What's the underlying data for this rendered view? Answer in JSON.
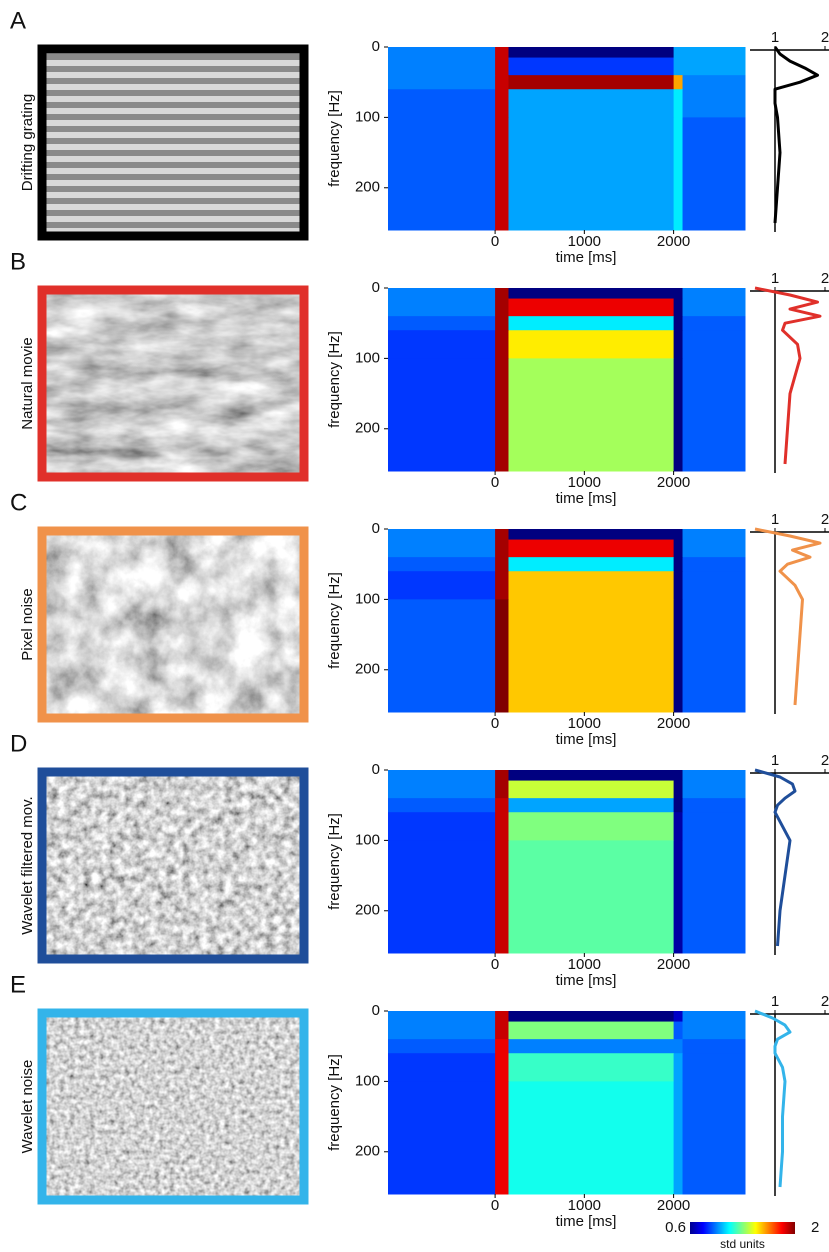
{
  "chart_data": [
    {
      "type": "heatmap",
      "panel": "A",
      "stimulus": "Drifting grating",
      "frame_color": "#000000",
      "xlabel": "time [ms]",
      "ylabel": "frequency [Hz]",
      "xlim": [
        -1200,
        2800
      ],
      "ylim": [
        260,
        0
      ],
      "xticks": [
        0,
        1000,
        2000
      ],
      "yticks": [
        0,
        100,
        200
      ],
      "x_edges": [
        -1200,
        0,
        150,
        2000,
        2100,
        2800
      ],
      "y_edges": [
        0,
        15,
        40,
        60,
        100,
        260
      ],
      "values": [
        [
          0.95,
          1.9,
          0.6,
          1.0,
          1.0
        ],
        [
          0.95,
          1.9,
          0.85,
          1.0,
          1.0
        ],
        [
          0.95,
          1.9,
          1.95,
          1.6,
          0.95
        ],
        [
          0.9,
          1.9,
          1.0,
          1.1,
          0.95
        ],
        [
          0.9,
          1.9,
          1.0,
          1.1,
          0.9
        ]
      ],
      "profile": {
        "color": "#000000",
        "xlim": [
          0.5,
          2
        ],
        "xticks": [
          1,
          2
        ],
        "freq": [
          0,
          10,
          20,
          30,
          40,
          50,
          60,
          80,
          100,
          150,
          200,
          250
        ],
        "values": [
          1.0,
          1.1,
          1.3,
          1.6,
          1.85,
          1.5,
          1.0,
          1.0,
          1.05,
          1.1,
          1.05,
          1.0
        ]
      }
    },
    {
      "type": "heatmap",
      "panel": "B",
      "stimulus": "Natural movie",
      "frame_color": "#e0302a",
      "xlabel": "time [ms]",
      "ylabel": "frequency [Hz]",
      "xlim": [
        -1200,
        2800
      ],
      "ylim": [
        260,
        0
      ],
      "xticks": [
        0,
        1000,
        2000
      ],
      "yticks": [
        0,
        100,
        200
      ],
      "x_edges": [
        -1200,
        0,
        150,
        2000,
        2100,
        2800
      ],
      "y_edges": [
        0,
        15,
        40,
        60,
        100,
        260
      ],
      "values": [
        [
          0.95,
          1.95,
          0.6,
          0.6,
          0.95
        ],
        [
          0.95,
          1.95,
          1.85,
          0.6,
          0.95
        ],
        [
          0.9,
          1.95,
          1.1,
          0.6,
          0.9
        ],
        [
          0.85,
          1.95,
          1.5,
          0.6,
          0.9
        ],
        [
          0.85,
          1.95,
          1.35,
          0.6,
          0.9
        ]
      ],
      "profile": {
        "color": "#e0302a",
        "xlim": [
          0.5,
          2
        ],
        "xticks": [
          1,
          2
        ],
        "freq": [
          0,
          10,
          20,
          30,
          40,
          50,
          60,
          80,
          100,
          150,
          200,
          250
        ],
        "values": [
          0.6,
          1.3,
          1.85,
          1.3,
          1.9,
          1.2,
          1.15,
          1.45,
          1.5,
          1.3,
          1.25,
          1.2
        ]
      }
    },
    {
      "type": "heatmap",
      "panel": "C",
      "stimulus": "Pixel noise",
      "frame_color": "#f0924a",
      "xlabel": "time [ms]",
      "ylabel": "frequency [Hz]",
      "xlim": [
        -1200,
        2800
      ],
      "ylim": [
        260,
        0
      ],
      "xticks": [
        0,
        1000,
        2000
      ],
      "yticks": [
        0,
        100,
        200
      ],
      "x_edges": [
        -1200,
        0,
        150,
        2000,
        2100,
        2800
      ],
      "y_edges": [
        0,
        15,
        40,
        60,
        100,
        260
      ],
      "values": [
        [
          0.95,
          1.95,
          0.6,
          0.6,
          0.95
        ],
        [
          0.95,
          1.95,
          1.85,
          0.6,
          0.95
        ],
        [
          0.9,
          1.95,
          1.1,
          0.6,
          0.9
        ],
        [
          0.85,
          1.95,
          1.55,
          0.6,
          0.9
        ],
        [
          0.9,
          2.0,
          1.55,
          0.6,
          0.9
        ]
      ],
      "profile": {
        "color": "#f0924a",
        "xlim": [
          0.5,
          2
        ],
        "xticks": [
          1,
          2
        ],
        "freq": [
          0,
          10,
          20,
          30,
          40,
          50,
          60,
          80,
          100,
          150,
          200,
          250
        ],
        "values": [
          0.6,
          1.3,
          1.9,
          1.35,
          1.7,
          1.25,
          1.1,
          1.4,
          1.55,
          1.5,
          1.45,
          1.4
        ]
      }
    },
    {
      "type": "heatmap",
      "panel": "D",
      "stimulus": "Wavelet filtered mov.",
      "frame_color": "#1f4e9a",
      "xlabel": "time [ms]",
      "ylabel": "frequency [Hz]",
      "xlim": [
        -1200,
        2800
      ],
      "ylim": [
        260,
        0
      ],
      "xticks": [
        0,
        1000,
        2000
      ],
      "yticks": [
        0,
        100,
        200
      ],
      "x_edges": [
        -1200,
        0,
        150,
        2000,
        2100,
        2800
      ],
      "y_edges": [
        0,
        15,
        40,
        60,
        100,
        260
      ],
      "values": [
        [
          0.95,
          1.95,
          0.6,
          0.6,
          0.95
        ],
        [
          0.95,
          1.95,
          1.4,
          0.6,
          0.95
        ],
        [
          0.9,
          1.9,
          1.0,
          0.6,
          0.9
        ],
        [
          0.85,
          1.9,
          1.3,
          0.65,
          0.9
        ],
        [
          0.85,
          1.9,
          1.25,
          0.65,
          0.9
        ]
      ],
      "profile": {
        "color": "#1f4e9a",
        "xlim": [
          0.5,
          2
        ],
        "xticks": [
          1,
          2
        ],
        "freq": [
          0,
          10,
          20,
          30,
          40,
          50,
          60,
          80,
          100,
          150,
          200,
          250
        ],
        "values": [
          0.6,
          1.1,
          1.35,
          1.4,
          1.2,
          1.05,
          1.0,
          1.15,
          1.3,
          1.2,
          1.1,
          1.05
        ]
      }
    },
    {
      "type": "heatmap",
      "panel": "E",
      "stimulus": "Wavelet noise",
      "frame_color": "#33b4ea",
      "xlabel": "time [ms]",
      "ylabel": "frequency [Hz]",
      "xlim": [
        -1200,
        2800
      ],
      "ylim": [
        260,
        0
      ],
      "xticks": [
        0,
        1000,
        2000
      ],
      "yticks": [
        0,
        100,
        200
      ],
      "x_edges": [
        -1200,
        0,
        150,
        2000,
        2100,
        2800
      ],
      "y_edges": [
        0,
        15,
        40,
        60,
        100,
        260
      ],
      "values": [
        [
          0.95,
          1.9,
          0.6,
          0.7,
          0.95
        ],
        [
          0.95,
          1.9,
          1.3,
          0.9,
          0.95
        ],
        [
          0.9,
          1.85,
          0.95,
          0.95,
          0.9
        ],
        [
          0.85,
          1.85,
          1.2,
          1.0,
          0.9
        ],
        [
          0.85,
          1.85,
          1.15,
          1.0,
          0.9
        ]
      ],
      "profile": {
        "color": "#33b4ea",
        "xlim": [
          0.5,
          2
        ],
        "xticks": [
          1,
          2
        ],
        "freq": [
          0,
          10,
          20,
          30,
          40,
          50,
          60,
          80,
          100,
          150,
          200,
          250
        ],
        "values": [
          0.6,
          0.95,
          1.2,
          1.3,
          1.05,
          1.0,
          1.0,
          1.15,
          1.2,
          1.15,
          1.15,
          1.1
        ]
      }
    }
  ],
  "colorbar": {
    "label": "std units",
    "lim": [
      0.6,
      2
    ],
    "ticks": [
      0.6,
      2
    ]
  }
}
